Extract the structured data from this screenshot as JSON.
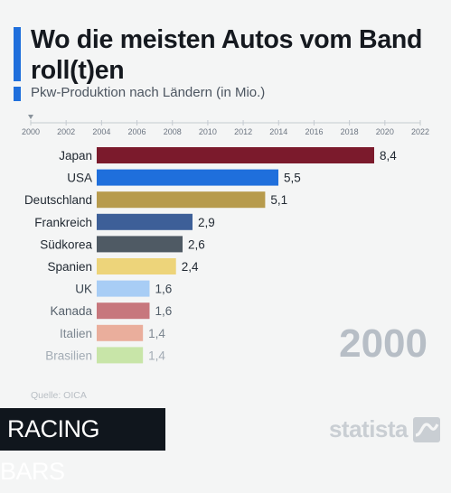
{
  "header": {
    "title": "Wo die meisten Autos vom Band roll(t)en",
    "subtitle": "Pkw-Produktion nach Ländern (in Mio.)"
  },
  "chart_data": {
    "type": "bar",
    "orientation": "horizontal",
    "title": "Wo die meisten Autos vom Band roll(t)en",
    "subtitle": "Pkw-Produktion nach Ländern (in Mio.)",
    "xlabel": "",
    "ylabel": "",
    "timeline_ticks": [
      "2000",
      "2002",
      "2004",
      "2006",
      "2008",
      "2010",
      "2012",
      "2014",
      "2016",
      "2018",
      "2020",
      "2022"
    ],
    "current_year": "2000",
    "xlim": [
      0,
      8.4
    ],
    "categories": [
      "Japan",
      "USA",
      "Deutschland",
      "Frankreich",
      "Südkorea",
      "Spanien",
      "UK",
      "Kanada",
      "Italien",
      "Brasilien"
    ],
    "values": [
      8.4,
      5.5,
      5.1,
      2.9,
      2.6,
      2.4,
      1.6,
      1.6,
      1.4,
      1.4
    ],
    "value_labels": [
      "8,4",
      "5,5",
      "5,1",
      "2,9",
      "2,6",
      "2,4",
      "1,6",
      "1,6",
      "1,4",
      "1,4"
    ],
    "colors": [
      "#7b1a2c",
      "#1f6fdc",
      "#b79b4d",
      "#3d5f98",
      "#4f5a64",
      "#edd47a",
      "#a8cdf5",
      "#c7777d",
      "#eaae9c",
      "#c8e5a8"
    ],
    "label_colors": [
      "#222a33",
      "#222a33",
      "#222a33",
      "#222a33",
      "#222a33",
      "#222a33",
      "#3a4550",
      "#55606b",
      "#7d8791",
      "#a3acb5"
    ],
    "grid": false,
    "legend": "none"
  },
  "footer": {
    "year_display": "2000",
    "source": "Quelle: OICA",
    "badge": "RACING BARS",
    "brand": "statista"
  },
  "colors": {
    "accent": "#1f6fdc",
    "background": "#f4f5f5"
  }
}
